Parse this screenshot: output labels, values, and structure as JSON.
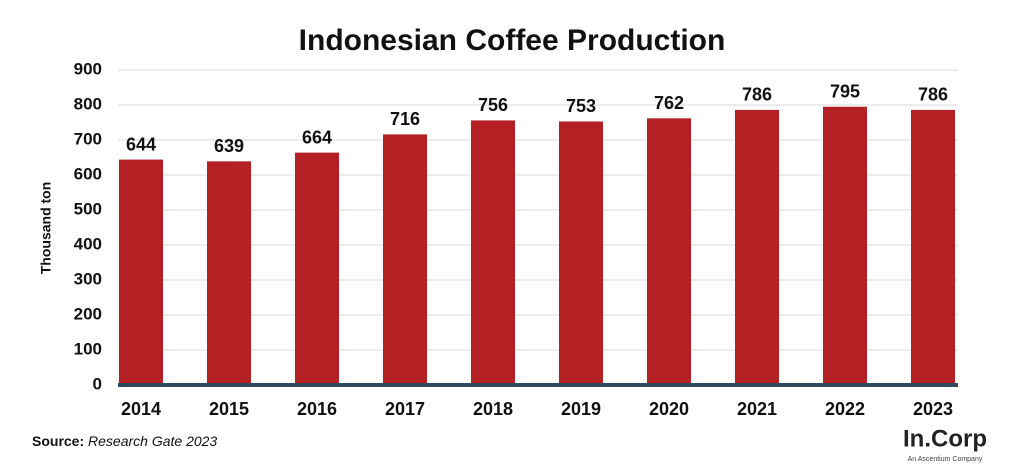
{
  "chart_data": {
    "type": "bar",
    "title": "Indonesian Coffee Production",
    "y_label": "Thousand ton",
    "categories": [
      "2014",
      "2015",
      "2016",
      "2017",
      "2018",
      "2019",
      "2020",
      "2021",
      "2022",
      "2023"
    ],
    "values": [
      644,
      639,
      664,
      716,
      756,
      753,
      762,
      786,
      795,
      786
    ],
    "color": "#b42024",
    "ylim": [
      0,
      900
    ],
    "yticks": [
      0,
      100,
      200,
      300,
      400,
      500,
      600,
      700,
      800,
      900
    ],
    "grid": true
  },
  "source": {
    "label": "Source:",
    "text": "Research Gate 2023"
  },
  "logo": {
    "name": "In.Corp",
    "tagline": "An Ascentium Company"
  }
}
